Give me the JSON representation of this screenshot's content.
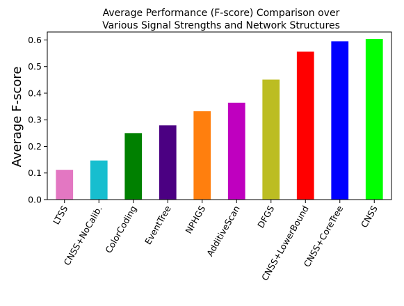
{
  "chart_data": {
    "type": "bar",
    "title_lines": [
      "Average Performance (F-score) Comparison over",
      "Various Signal Strengths and Network Structures"
    ],
    "xlabel": "",
    "ylabel": "Average F-score",
    "ylim": [
      0,
      0.63
    ],
    "yticks": [
      0.0,
      0.1,
      0.2,
      0.3,
      0.4,
      0.5,
      0.6
    ],
    "ytick_labels": [
      "0.0",
      "0.1",
      "0.2",
      "0.3",
      "0.4",
      "0.5",
      "0.6"
    ],
    "categories": [
      "LTSS",
      "CNSS+NoCalib.",
      "ColorCoding",
      "EventTree",
      "NPHGS",
      "AdditiveScan",
      "DFGS",
      "CNSS+LowerBound",
      "CNSS+CoreTree",
      "CNSS"
    ],
    "values": [
      0.112,
      0.147,
      0.25,
      0.279,
      0.332,
      0.364,
      0.451,
      0.556,
      0.595,
      0.604
    ],
    "colors": [
      "#e377c2",
      "#17becf",
      "#008000",
      "#4b0082",
      "#ff7f0e",
      "#bf00bf",
      "#bcbd22",
      "#ff0000",
      "#0000ff",
      "#00ff00"
    ],
    "grid": false,
    "legend": "none"
  }
}
